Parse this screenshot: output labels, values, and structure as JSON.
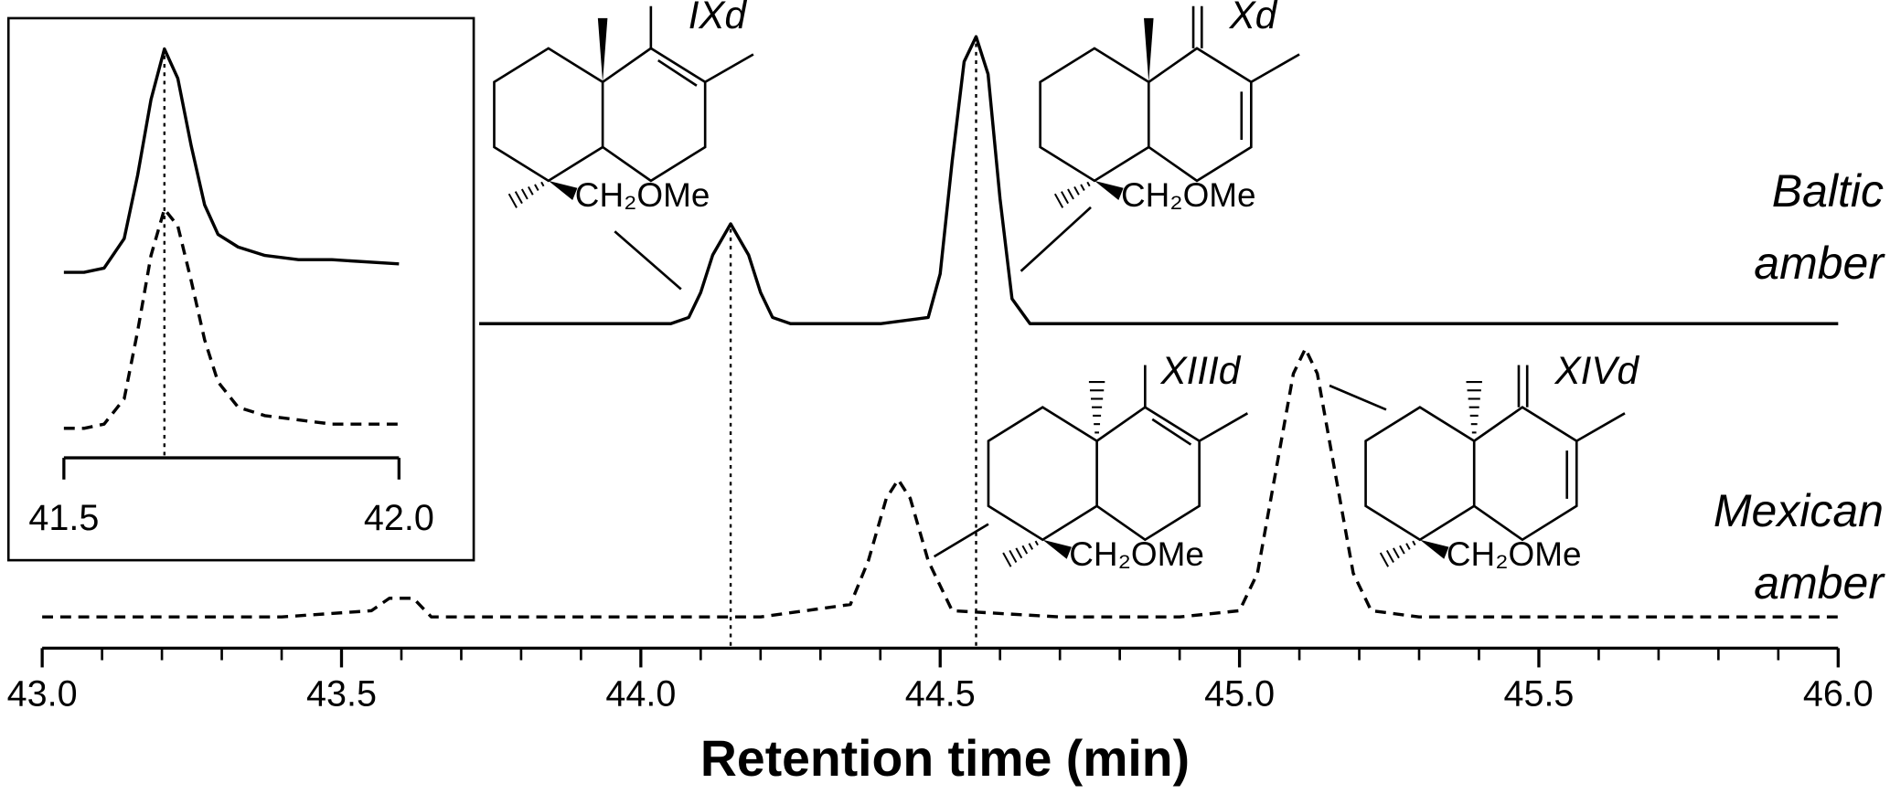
{
  "chart_data": [
    {
      "type": "line",
      "xlabel": "Retention time (min)",
      "xlim": [
        43,
        46
      ],
      "xticks": [
        {
          "value": 43,
          "label": "43.0"
        },
        {
          "value": 43.5,
          "label": "43.5"
        },
        {
          "value": 44,
          "label": "44.0"
        },
        {
          "value": 44.5,
          "label": "44.5"
        },
        {
          "value": 45,
          "label": "45.0"
        },
        {
          "value": 45.5,
          "label": "45.5"
        },
        {
          "value": 46,
          "label": "46.0"
        }
      ],
      "xminor_ticks": [
        43.1,
        43.2,
        43.3,
        43.4,
        43.6,
        43.7,
        43.8,
        43.9,
        44.1,
        44.2,
        44.3,
        44.4,
        44.6,
        44.7,
        44.8,
        44.9,
        45.1,
        45.2,
        45.3,
        45.4,
        45.6,
        45.7,
        45.8,
        45.9
      ],
      "ylim": [
        0,
        100
      ],
      "series": [
        {
          "name": "Baltic amber",
          "color": "#000000",
          "dash": "solid",
          "x": [
            43.73,
            43.8,
            43.9,
            44.0,
            44.05,
            44.08,
            44.1,
            44.12,
            44.15,
            44.18,
            44.2,
            44.22,
            44.25,
            44.3,
            44.4,
            44.48,
            44.5,
            44.52,
            44.54,
            44.56,
            44.58,
            44.6,
            44.62,
            44.65,
            44.7,
            44.8,
            45.0,
            45.2,
            45.4,
            45.6,
            45.8,
            46.0
          ],
          "values": [
            52,
            52,
            52,
            52,
            52,
            53,
            57,
            63,
            68,
            63,
            57,
            53,
            52,
            52,
            52,
            53,
            60,
            78,
            94,
            98,
            92,
            72,
            56,
            52,
            52,
            52,
            52,
            52,
            52,
            52,
            52,
            52
          ]
        },
        {
          "name": "Mexican amber",
          "color": "#000000",
          "dash": "dashed",
          "x": [
            43.0,
            43.2,
            43.4,
            43.55,
            43.58,
            43.6,
            43.62,
            43.65,
            43.8,
            44.0,
            44.2,
            44.35,
            44.38,
            44.41,
            44.43,
            44.45,
            44.48,
            44.52,
            44.7,
            44.9,
            45.0,
            45.03,
            45.06,
            45.09,
            45.11,
            45.13,
            45.16,
            45.19,
            45.22,
            45.3,
            45.5,
            45.8,
            46.0
          ],
          "values": [
            5,
            5,
            5,
            6,
            8,
            8,
            8,
            5,
            5,
            5,
            5,
            7,
            14,
            24,
            27,
            24,
            14,
            6,
            5,
            5,
            6,
            12,
            28,
            44,
            48,
            44,
            28,
            12,
            6,
            5,
            5,
            5,
            5
          ]
        }
      ],
      "reference_lines": [
        44.15,
        44.56
      ],
      "substituent": "CH₂OMe",
      "compounds": [
        {
          "label": "IXd",
          "exocyclic": false,
          "hashed_methyl": false
        },
        {
          "label": "Xd",
          "exocyclic": true,
          "hashed_methyl": false
        },
        {
          "label": "XIIId",
          "exocyclic": false,
          "hashed_methyl": true
        },
        {
          "label": "XIVd",
          "exocyclic": true,
          "hashed_methyl": true
        }
      ]
    },
    {
      "type": "line",
      "xlim": [
        41.5,
        42.0
      ],
      "xticks": [
        {
          "value": 41.5,
          "label": "41.5"
        },
        {
          "value": 42.0,
          "label": "42.0"
        }
      ],
      "ylim": [
        0,
        100
      ],
      "series": [
        {
          "color": "#000000",
          "dash": "solid",
          "x": [
            41.5,
            41.53,
            41.56,
            41.59,
            41.61,
            41.63,
            41.65,
            41.67,
            41.69,
            41.71,
            41.73,
            41.76,
            41.8,
            41.85,
            41.9,
            42.0
          ],
          "values": [
            44,
            44,
            45,
            52,
            67,
            85,
            97,
            90,
            74,
            60,
            53,
            50,
            48,
            47,
            47,
            46
          ]
        },
        {
          "color": "#000000",
          "dash": "dashed",
          "x": [
            41.5,
            41.53,
            41.56,
            41.59,
            41.61,
            41.63,
            41.65,
            41.67,
            41.69,
            41.71,
            41.73,
            41.76,
            41.8,
            41.85,
            41.9,
            42.0
          ],
          "values": [
            7,
            7,
            8,
            14,
            30,
            48,
            59,
            55,
            42,
            28,
            18,
            12,
            10,
            9,
            8,
            8
          ]
        }
      ],
      "reference_lines": [
        41.65
      ]
    }
  ]
}
